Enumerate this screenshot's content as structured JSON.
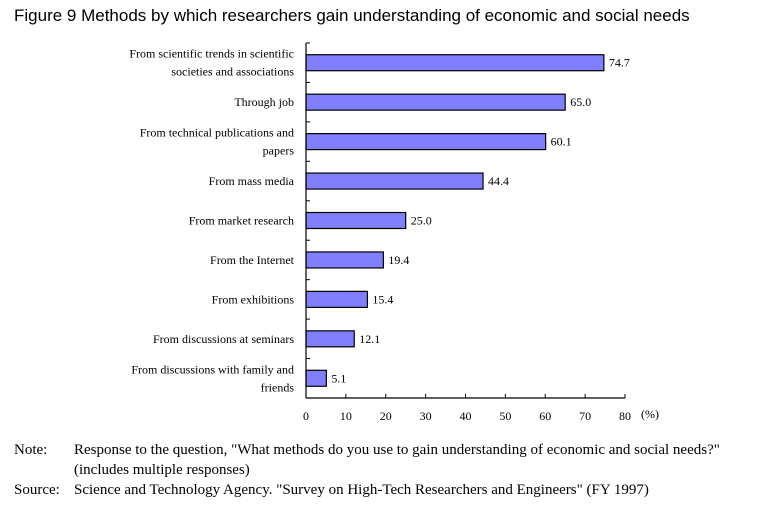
{
  "chart_data": {
    "type": "bar",
    "orientation": "horizontal",
    "title": "Figure 9 Methods by which researchers gain understanding of economic and social needs",
    "categories": [
      [
        "From scientific trends in scientific",
        "societies and associations"
      ],
      [
        "Through job"
      ],
      [
        "From technical publications and",
        "papers"
      ],
      [
        "From mass media"
      ],
      [
        "From market research"
      ],
      [
        "From the Internet"
      ],
      [
        "From exhibitions"
      ],
      [
        "From discussions at seminars"
      ],
      [
        "From discussions with family and",
        "friends"
      ]
    ],
    "values": [
      74.7,
      65.0,
      60.1,
      44.4,
      25.0,
      19.4,
      15.4,
      12.1,
      5.1
    ],
    "value_labels": [
      "74.7",
      "65.0",
      "60.1",
      "44.4",
      "25.0",
      "19.4",
      "15.4",
      "12.1",
      "5.1"
    ],
    "xlim": [
      0,
      80
    ],
    "xticks": [
      0,
      10,
      20,
      30,
      40,
      50,
      60,
      70,
      80
    ],
    "xunit": "(%)",
    "bar_color": "#8080ff"
  },
  "notes": {
    "note_label": "Note:",
    "note_text": "Response to the question, \"What methods do you use to gain understanding of economic and social needs?\" (includes multiple responses)",
    "source_label": "Source:",
    "source_text": "Science and Technology Agency. \"Survey on High-Tech Researchers and Engineers\" (FY 1997)"
  }
}
